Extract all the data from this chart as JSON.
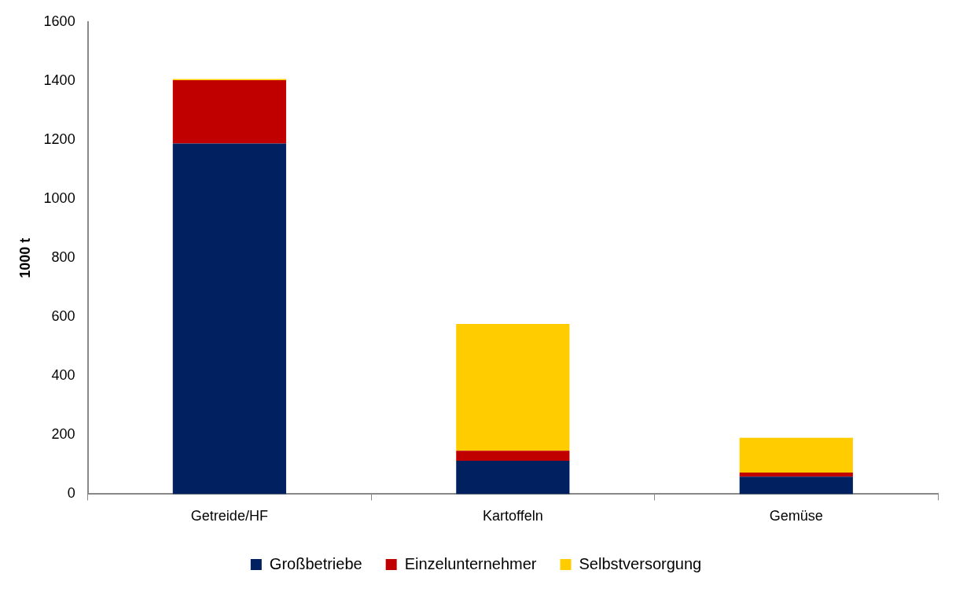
{
  "chart_data": {
    "type": "bar",
    "stacked": true,
    "ylabel": "1000 t",
    "categories": [
      "Getreide/HF",
      "Kartoffeln",
      "Gemüse"
    ],
    "series": [
      {
        "name": "Großbetriebe",
        "color": "#002060",
        "values": [
          1188,
          113,
          59
        ]
      },
      {
        "name": "Einzelunternehmer",
        "color": "#c00000",
        "values": [
          215,
          34,
          14
        ]
      },
      {
        "name": "Selbstversorgung",
        "color": "#ffcc00",
        "values": [
          4,
          430,
          118
        ]
      }
    ],
    "ylim": [
      0,
      1600
    ],
    "yticks": [
      0,
      200,
      400,
      600,
      800,
      1000,
      1200,
      1400,
      1600
    ],
    "grid": false,
    "legend": "bottom"
  }
}
